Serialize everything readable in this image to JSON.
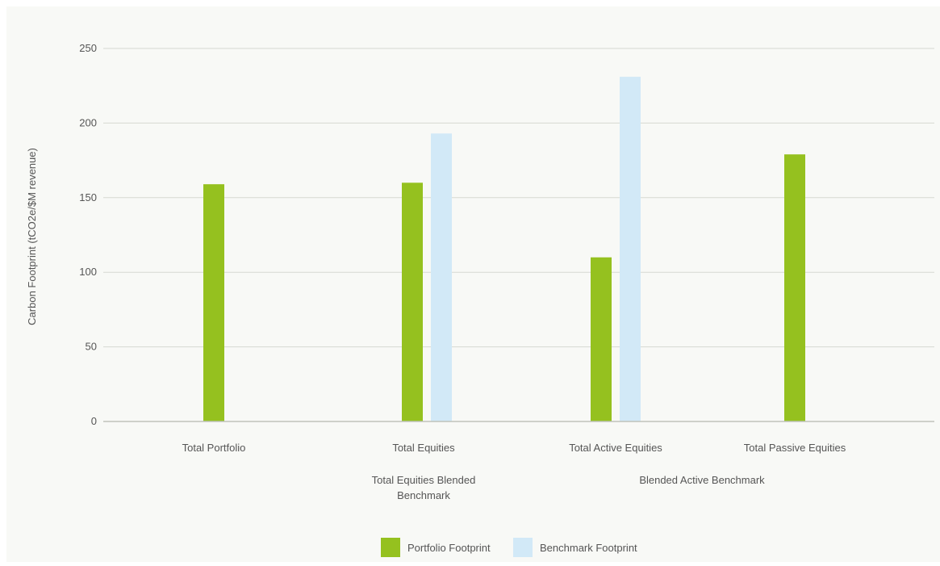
{
  "chart_data": {
    "type": "bar",
    "title": "",
    "xlabel": "",
    "ylabel": "Carbon Footprint (tCO2e/$M revenue)",
    "ylim": [
      0,
      250
    ],
    "yticks": [
      0,
      50,
      100,
      150,
      200,
      250
    ],
    "grid": true,
    "legend_position": "bottom-center",
    "categories": [
      "Total Portfolio",
      "Total Equities",
      "Total Active Equities",
      "Total Passive Equities"
    ],
    "benchmark_labels": [
      "",
      "Total Equities Blended Benchmark",
      "Blended Active Benchmark",
      ""
    ],
    "series": [
      {
        "name": "Portfolio Footprint",
        "color": "#95c11f",
        "values": [
          159,
          160,
          110,
          179
        ]
      },
      {
        "name": "Benchmark Footprint",
        "color": "#d2e9f7",
        "values": [
          null,
          193,
          231,
          null
        ]
      }
    ]
  }
}
